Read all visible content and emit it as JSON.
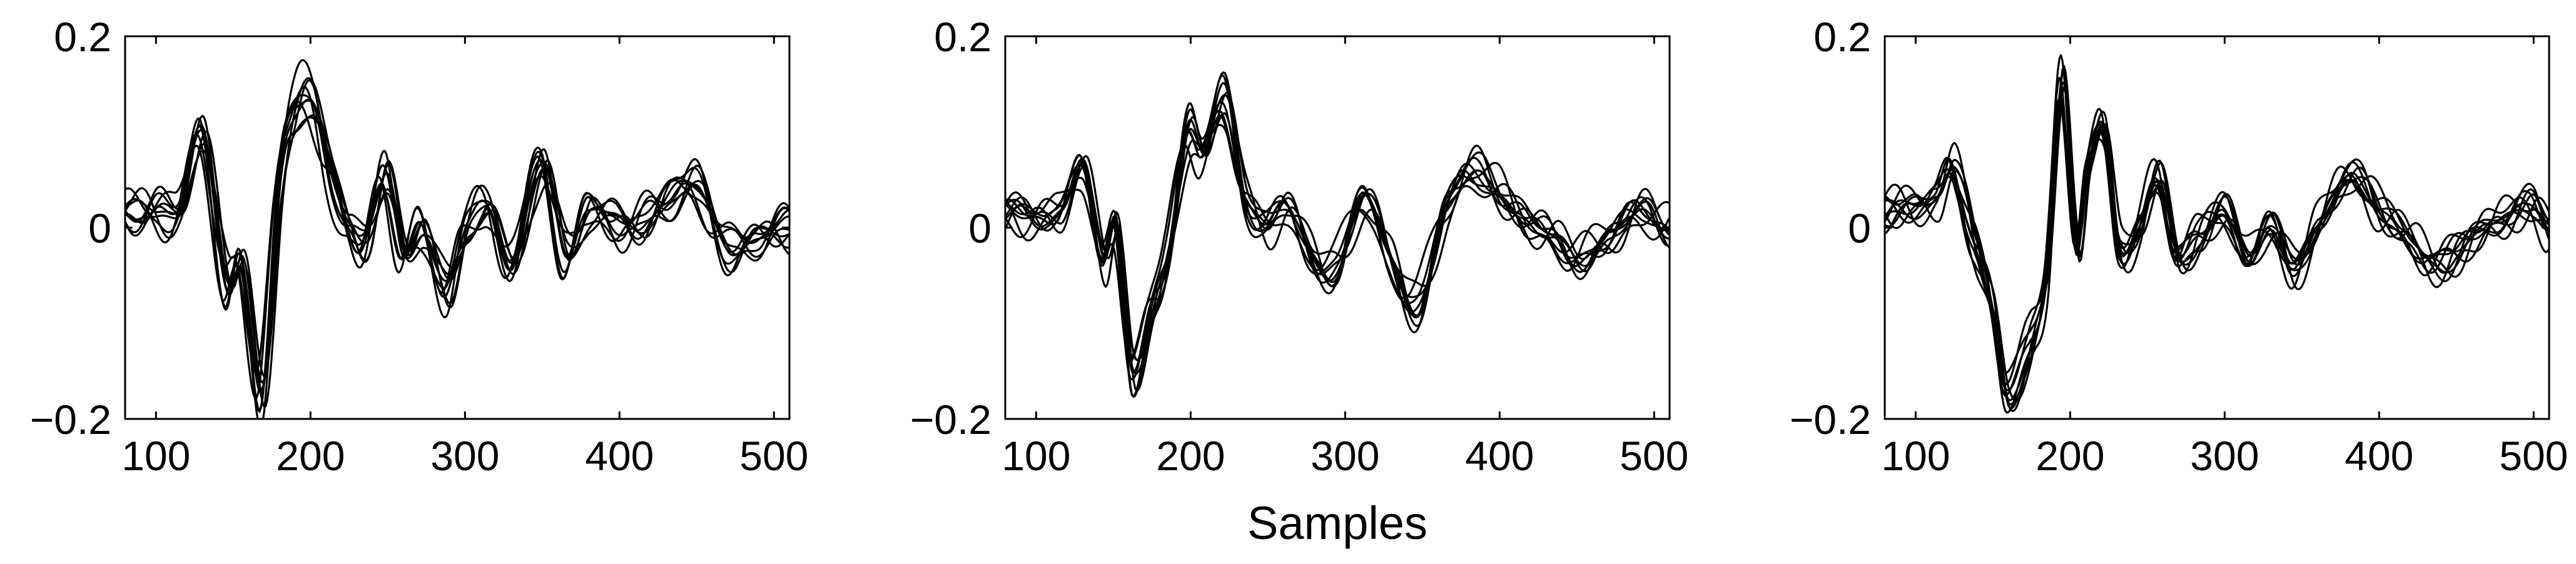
{
  "figure": {
    "xlabel": "Samples"
  },
  "chart_data": [
    {
      "type": "line",
      "xlim": [
        80,
        510
      ],
      "ylim": [
        -0.2,
        0.2
      ],
      "xticks": [
        "100",
        "200",
        "300",
        "400",
        "500"
      ],
      "yticks": [
        "0.2",
        "0",
        "−0.2"
      ],
      "grid": false,
      "legend": "none",
      "trace_count": 10,
      "series": [
        {
          "values": [
            [
              80,
              0.02
            ],
            [
              100,
              0.015
            ],
            [
              115,
              0.02
            ],
            [
              130,
              0.1
            ],
            [
              145,
              -0.06
            ],
            [
              155,
              -0.04
            ],
            [
              168,
              -0.18
            ],
            [
              180,
              0.05
            ],
            [
              190,
              0.13
            ],
            [
              200,
              0.14
            ],
            [
              212,
              0.06
            ],
            [
              225,
              0.0
            ],
            [
              235,
              -0.02
            ],
            [
              248,
              0.06
            ],
            [
              260,
              -0.03
            ],
            [
              272,
              0.0
            ],
            [
              288,
              -0.07
            ],
            [
              300,
              0.0
            ],
            [
              315,
              0.02
            ],
            [
              330,
              -0.04
            ],
            [
              350,
              0.07
            ],
            [
              365,
              -0.03
            ],
            [
              380,
              0.02
            ],
            [
              400,
              0.0
            ],
            [
              425,
              0.02
            ],
            [
              448,
              0.045
            ],
            [
              470,
              -0.02
            ],
            [
              490,
              -0.01
            ],
            [
              510,
              0.0
            ]
          ]
        }
      ]
    },
    {
      "type": "line",
      "xlim": [
        80,
        510
      ],
      "ylim": [
        -0.2,
        0.2
      ],
      "xticks": [
        "100",
        "200",
        "300",
        "400",
        "500"
      ],
      "yticks": [
        "0.2",
        "0",
        "−0.2"
      ],
      "grid": false,
      "legend": "none",
      "trace_count": 10,
      "series": [
        {
          "values": [
            [
              80,
              0.015
            ],
            [
              100,
              0.01
            ],
            [
              115,
              0.02
            ],
            [
              130,
              0.07
            ],
            [
              143,
              -0.04
            ],
            [
              152,
              0.0
            ],
            [
              162,
              -0.16
            ],
            [
              175,
              -0.08
            ],
            [
              185,
              -0.03
            ],
            [
              198,
              0.1
            ],
            [
              208,
              0.08
            ],
            [
              222,
              0.14
            ],
            [
              235,
              0.04
            ],
            [
              248,
              0.0
            ],
            [
              262,
              0.02
            ],
            [
              278,
              -0.03
            ],
            [
              295,
              -0.04
            ],
            [
              312,
              0.03
            ],
            [
              330,
              -0.04
            ],
            [
              348,
              -0.08
            ],
            [
              365,
              0.02
            ],
            [
              388,
              0.06
            ],
            [
              410,
              0.02
            ],
            [
              430,
              -0.01
            ],
            [
              450,
              -0.03
            ],
            [
              470,
              -0.01
            ],
            [
              495,
              0.015
            ],
            [
              510,
              0.0
            ]
          ]
        }
      ]
    },
    {
      "type": "line",
      "xlim": [
        80,
        510
      ],
      "ylim": [
        -0.2,
        0.2
      ],
      "xticks": [
        "100",
        "200",
        "300",
        "400",
        "500"
      ],
      "yticks": [
        "0.2",
        "0",
        "−0.2"
      ],
      "grid": false,
      "legend": "none",
      "trace_count": 10,
      "series": [
        {
          "values": [
            [
              80,
              0.02
            ],
            [
              100,
              0.02
            ],
            [
              115,
              0.03
            ],
            [
              125,
              0.06
            ],
            [
              140,
              -0.02
            ],
            [
              150,
              -0.08
            ],
            [
              160,
              -0.17
            ],
            [
              175,
              -0.12
            ],
            [
              185,
              -0.05
            ],
            [
              195,
              0.15
            ],
            [
              205,
              -0.02
            ],
            [
              212,
              0.06
            ],
            [
              222,
              0.1
            ],
            [
              232,
              -0.02
            ],
            [
              245,
              0.0
            ],
            [
              258,
              0.05
            ],
            [
              270,
              -0.03
            ],
            [
              285,
              -0.01
            ],
            [
              300,
              0.02
            ],
            [
              315,
              -0.03
            ],
            [
              330,
              0.0
            ],
            [
              345,
              -0.04
            ],
            [
              360,
              0.0
            ],
            [
              380,
              0.05
            ],
            [
              400,
              0.02
            ],
            [
              420,
              -0.01
            ],
            [
              440,
              -0.04
            ],
            [
              460,
              -0.01
            ],
            [
              480,
              0.01
            ],
            [
              500,
              0.02
            ],
            [
              510,
              0.0
            ]
          ]
        }
      ]
    }
  ]
}
